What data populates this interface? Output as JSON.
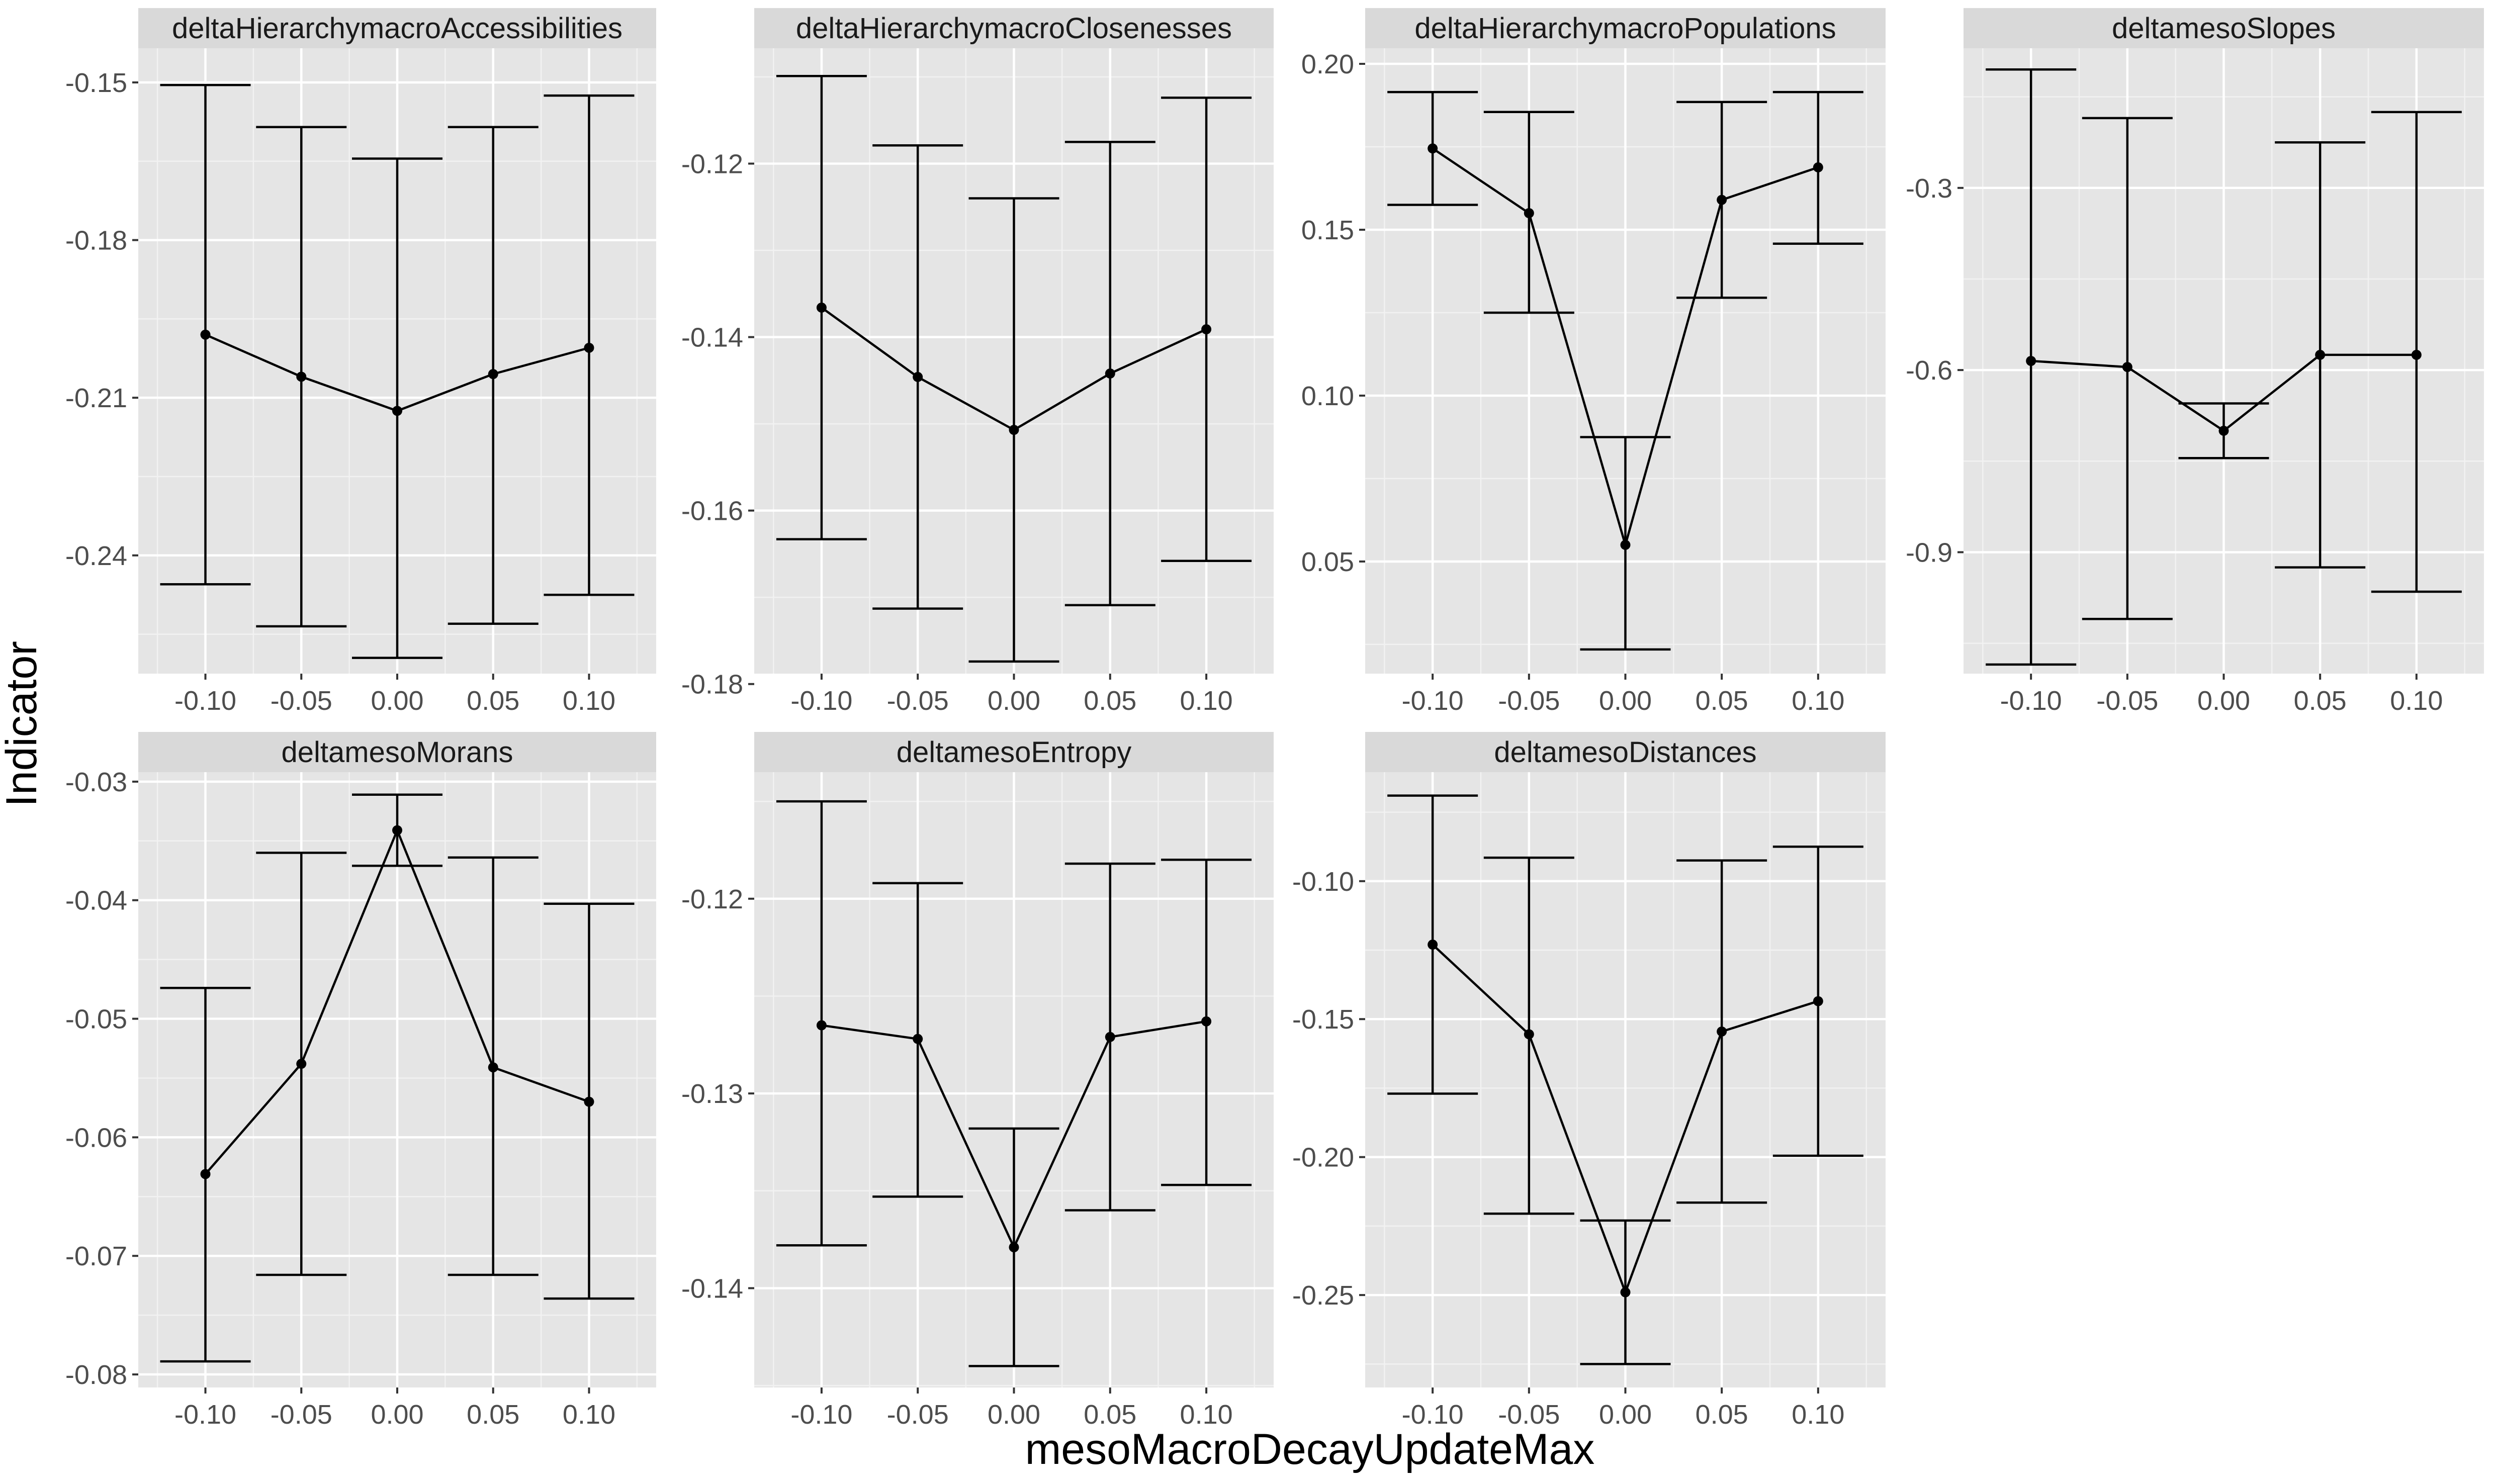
{
  "figure": {
    "xlabel": "mesoMacroDecayUpdateMax",
    "ylabel": "Indicator",
    "colors": {
      "panel": "#e5e5e5",
      "strip": "#d9d9d9",
      "grid_major": "#ffffff",
      "grid_minor": "#f2f2f2",
      "line": "#000000",
      "tick_text": "#4d4d4d"
    }
  },
  "chart_data": [
    {
      "type": "line",
      "title": "deltaHierarchymacroAccessibilities",
      "x": [
        -0.1,
        -0.05,
        0.0,
        0.05,
        0.1
      ],
      "x_tick_labels": [
        "-0.10",
        "-0.05",
        "0.00",
        "0.05",
        "0.10"
      ],
      "y": [
        -0.198,
        -0.206,
        -0.2125,
        -0.2055,
        -0.2005
      ],
      "ymin": [
        -0.2455,
        -0.2535,
        -0.2595,
        -0.253,
        -0.2475
      ],
      "ymax": [
        -0.1505,
        -0.1585,
        -0.1645,
        -0.1585,
        -0.1525
      ],
      "xlim": [
        -0.135,
        0.135
      ],
      "ylim": [
        -0.2625,
        -0.1435
      ],
      "y_ticks": [
        -0.24,
        -0.21,
        -0.18,
        -0.15
      ],
      "y_tick_labels": [
        "-0.24",
        "-0.21",
        "-0.18",
        "-0.15"
      ]
    },
    {
      "type": "line",
      "title": "deltaHierarchymacroClosenesses",
      "x": [
        -0.1,
        -0.05,
        0.0,
        0.05,
        0.1
      ],
      "x_tick_labels": [
        "-0.10",
        "-0.05",
        "0.00",
        "0.05",
        "0.10"
      ],
      "y": [
        -0.1366,
        -0.1446,
        -0.1507,
        -0.1442,
        -0.1391
      ],
      "ymin": [
        -0.1633,
        -0.1713,
        -0.1774,
        -0.1709,
        -0.1658
      ],
      "ymax": [
        -0.1099,
        -0.1179,
        -0.124,
        -0.1175,
        -0.1124
      ],
      "xlim": [
        -0.135,
        0.135
      ],
      "ylim": [
        -0.1788,
        -0.1067
      ],
      "y_ticks": [
        -0.18,
        -0.16,
        -0.14,
        -0.12
      ],
      "y_tick_labels": [
        "-0.18",
        "-0.16",
        "-0.14",
        "-0.12"
      ]
    },
    {
      "type": "line",
      "title": "deltaHierarchymacroPopulations",
      "x": [
        -0.1,
        -0.05,
        0.0,
        0.05,
        0.1
      ],
      "x_tick_labels": [
        "-0.10",
        "-0.05",
        "0.00",
        "0.05",
        "0.10"
      ],
      "y": [
        0.1745,
        0.155,
        0.055,
        0.159,
        0.1688
      ],
      "ymin": [
        0.1575,
        0.125,
        0.0235,
        0.1295,
        0.1458
      ],
      "ymax": [
        0.1915,
        0.1855,
        0.0875,
        0.1885,
        0.1915
      ],
      "xlim": [
        -0.135,
        0.135
      ],
      "ylim": [
        0.0162,
        0.2047
      ],
      "y_ticks": [
        0.05,
        0.1,
        0.15,
        0.2
      ],
      "y_tick_labels": [
        "0.05",
        "0.10",
        "0.15",
        "0.20"
      ]
    },
    {
      "type": "line",
      "title": "deltamesoSlopes",
      "x": [
        -0.1,
        -0.05,
        0.0,
        0.05,
        0.1
      ],
      "x_tick_labels": [
        "-0.10",
        "-0.05",
        "0.00",
        "0.05",
        "0.10"
      ],
      "y": [
        -0.585,
        -0.595,
        -0.7,
        -0.575,
        -0.575
      ],
      "ymin": [
        -1.085,
        -1.01,
        -0.745,
        -0.925,
        -0.965
      ],
      "ymax": [
        -0.105,
        -0.185,
        -0.655,
        -0.225,
        -0.175
      ],
      "xlim": [
        -0.135,
        0.135
      ],
      "ylim": [
        -1.1,
        -0.07
      ],
      "y_ticks": [
        -0.9,
        -0.6,
        -0.3
      ],
      "y_tick_labels": [
        "-0.9",
        "-0.6",
        "-0.3"
      ]
    },
    {
      "type": "line",
      "title": "deltamesoMorans",
      "x": [
        -0.1,
        -0.05,
        0.0,
        0.05,
        0.1
      ],
      "x_tick_labels": [
        "-0.10",
        "-0.05",
        "0.00",
        "0.05",
        "0.10"
      ],
      "y": [
        -0.0631,
        -0.0538,
        -0.0341,
        -0.0541,
        -0.057
      ],
      "ymin": [
        -0.0789,
        -0.0716,
        -0.0371,
        -0.0716,
        -0.0736
      ],
      "ymax": [
        -0.0474,
        -0.036,
        -0.0311,
        -0.0364,
        -0.0403
      ],
      "xlim": [
        -0.135,
        0.135
      ],
      "ylim": [
        -0.0811,
        -0.0292
      ],
      "y_ticks": [
        -0.08,
        -0.07,
        -0.06,
        -0.05,
        -0.04,
        -0.03
      ],
      "y_tick_labels": [
        "-0.08",
        "-0.07",
        "-0.06",
        "-0.05",
        "-0.04",
        "-0.03"
      ]
    },
    {
      "type": "line",
      "title": "deltamesoEntropy",
      "x": [
        -0.1,
        -0.05,
        0.0,
        0.05,
        0.1
      ],
      "x_tick_labels": [
        "-0.10",
        "-0.05",
        "0.00",
        "0.05",
        "0.10"
      ],
      "y": [
        -0.1265,
        -0.1272,
        -0.1379,
        -0.1271,
        -0.1263
      ],
      "ymin": [
        -0.1378,
        -0.1353,
        -0.144,
        -0.136,
        -0.1347
      ],
      "ymax": [
        -0.115,
        -0.1192,
        -0.1318,
        -0.1182,
        -0.118
      ],
      "xlim": [
        -0.135,
        0.135
      ],
      "ylim": [
        -0.1451,
        -0.1135
      ],
      "y_ticks": [
        -0.14,
        -0.13,
        -0.12
      ],
      "y_tick_labels": [
        "-0.14",
        "-0.13",
        "-0.12"
      ]
    },
    {
      "type": "line",
      "title": "deltamesoDistances",
      "x": [
        -0.1,
        -0.05,
        0.0,
        0.05,
        0.1
      ],
      "x_tick_labels": [
        "-0.10",
        "-0.05",
        "0.00",
        "0.05",
        "0.10"
      ],
      "y": [
        -0.123,
        -0.1555,
        -0.249,
        -0.1545,
        -0.1435
      ],
      "ymin": [
        -0.177,
        -0.2205,
        -0.275,
        -0.2165,
        -0.1995
      ],
      "ymax": [
        -0.069,
        -0.0915,
        -0.223,
        -0.0925,
        -0.0875
      ],
      "xlim": [
        -0.135,
        0.135
      ],
      "ylim": [
        -0.2835,
        -0.0605
      ],
      "y_ticks": [
        -0.25,
        -0.2,
        -0.15,
        -0.1
      ],
      "y_tick_labels": [
        "-0.25",
        "-0.20",
        "-0.15",
        "-0.10"
      ]
    }
  ]
}
